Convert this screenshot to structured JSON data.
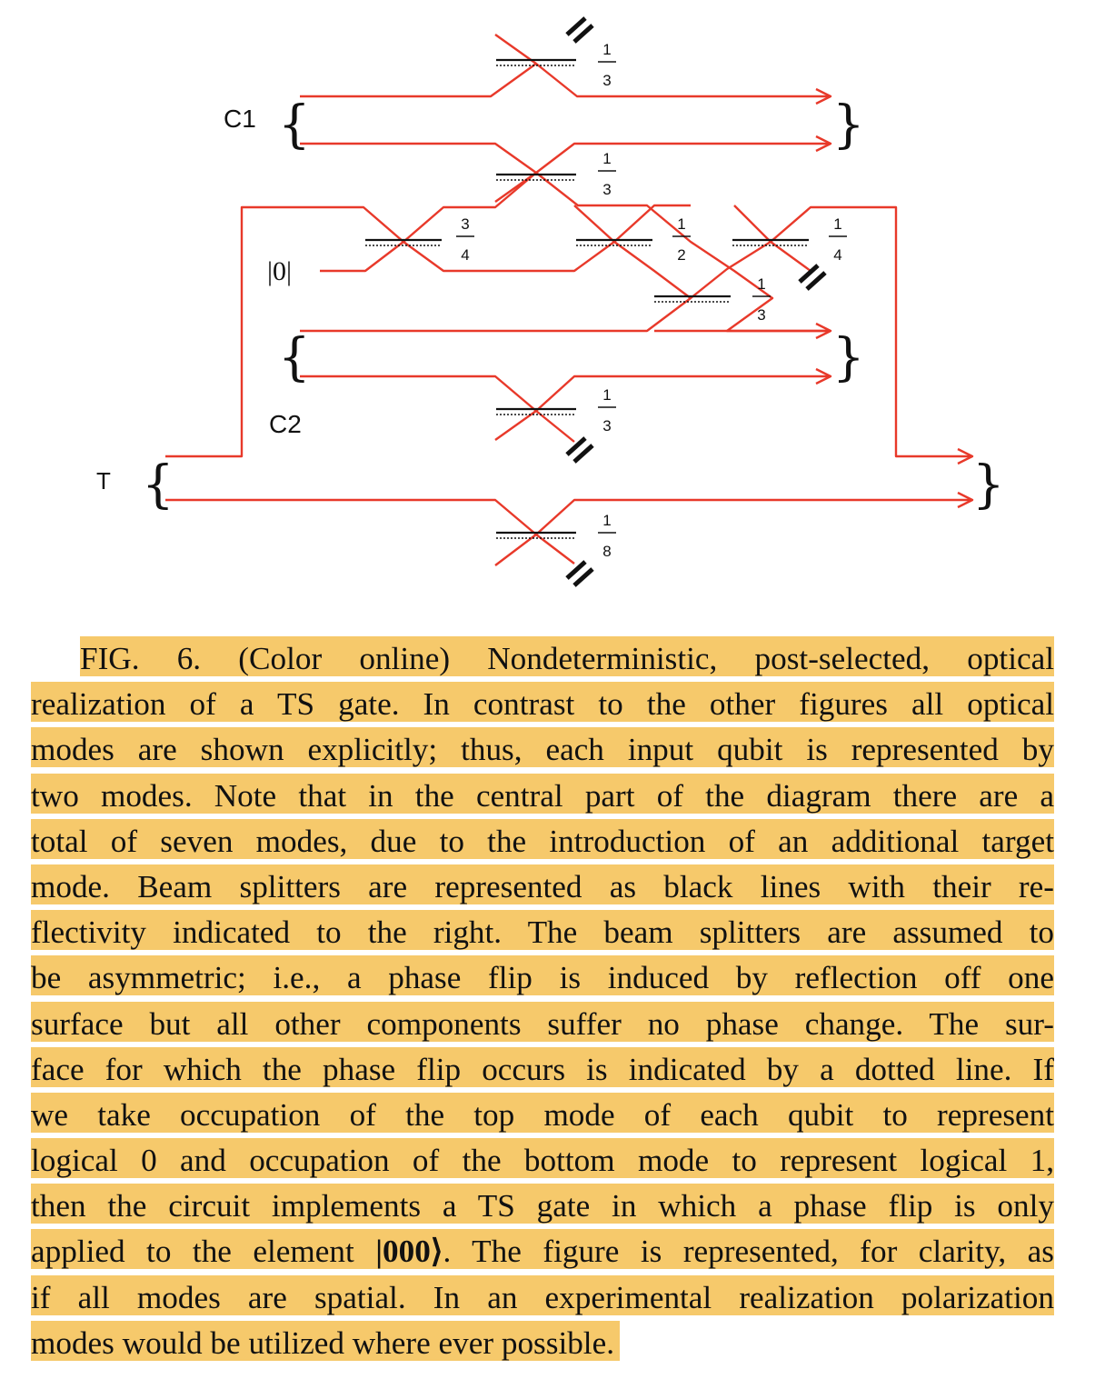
{
  "diagram": {
    "labels": {
      "c1": "C1",
      "c2": "C2",
      "t": "T",
      "ancilla": "|0|"
    },
    "beam_splitters": [
      {
        "id": "bs-c1-top",
        "num": "1",
        "den": "3"
      },
      {
        "id": "bs-c1-bottom",
        "num": "1",
        "den": "3"
      },
      {
        "id": "bs-ancilla",
        "num": "3",
        "den": "4"
      },
      {
        "id": "bs-center-half",
        "num": "1",
        "den": "2"
      },
      {
        "id": "bs-right-quarter",
        "num": "1",
        "den": "4"
      },
      {
        "id": "bs-center-third",
        "num": "1",
        "den": "3"
      },
      {
        "id": "bs-c2-bottom",
        "num": "1",
        "den": "3"
      },
      {
        "id": "bs-t-bottom",
        "num": "1",
        "den": "8"
      }
    ],
    "colors": {
      "mode_line": "#e8392a",
      "splitter": "#111111",
      "caption_highlight": "#f6c96b"
    }
  },
  "caption": {
    "lines": [
      "FIG. 6. (Color online) Nondeterministic, post-selected, optical",
      "realization of a TS gate. In contrast to the other figures all optical",
      "modes are shown explicitly; thus, each input qubit is represented by",
      "two modes. Note that in the central part of the diagram there are a",
      "total of seven modes, due to the introduction of an additional target",
      "mode. Beam splitters are represented as black lines with their re-",
      "flectivity indicated to the right. The beam splitters are assumed to",
      "be asymmetric; i.e., a phase flip is induced by reflection off one",
      "surface but all other components suffer no phase change. The sur-",
      "face for which the phase flip occurs is indicated by a dotted line. If",
      "we take occupation of the top mode of each qubit to represent",
      "logical 0 and occupation of the bottom mode to represent logical 1,",
      "then the circuit implements a TS gate in which a phase flip is only"
    ],
    "line14_before": "applied to the element ",
    "line14_ket": "|000⟩",
    "line14_after": ". The figure is represented, for clarity, as",
    "line15": "if all modes are spatial. In an experimental realization polarization",
    "line16": "modes would be utilized where ever possible."
  }
}
